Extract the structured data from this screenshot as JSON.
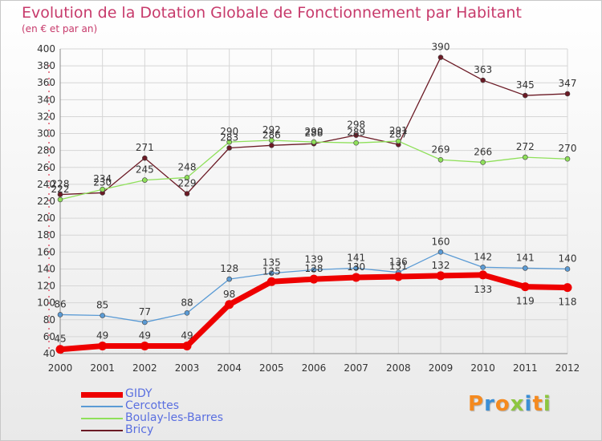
{
  "chart_data": {
    "type": "line",
    "title": "Evolution de la Dotation Globale de Fonctionnement par Habitant",
    "subtitle": "(en € et par an)",
    "xlabel": "",
    "ylabel": "",
    "categories": [
      "2000",
      "2001",
      "2002",
      "2003",
      "2004",
      "2005",
      "2006",
      "2007",
      "2008",
      "2009",
      "2010",
      "2011",
      "2012"
    ],
    "ylim": [
      40,
      400
    ],
    "yticks": [
      40,
      60,
      80,
      100,
      120,
      140,
      160,
      180,
      200,
      220,
      240,
      260,
      280,
      300,
      320,
      340,
      360,
      380,
      400
    ],
    "grid": true,
    "legend_position": "bottom-left",
    "series": [
      {
        "name": "GIDY",
        "color": "#ee0000",
        "values": [
          45,
          49,
          49,
          49,
          98,
          125,
          128,
          130,
          131,
          132,
          133,
          119,
          118
        ]
      },
      {
        "name": "Cercottes",
        "color": "#5b9bd5",
        "values": [
          86,
          85,
          77,
          88,
          128,
          135,
          139,
          141,
          136,
          160,
          142,
          141,
          140
        ]
      },
      {
        "name": "Boulay-les-Barres",
        "color": "#8fe05a",
        "values": [
          222,
          234,
          245,
          248,
          290,
          292,
          290,
          289,
          291,
          269,
          266,
          272,
          270
        ]
      },
      {
        "name": "Bricy",
        "color": "#6b1a25",
        "values": [
          228,
          230,
          271,
          229,
          283,
          286,
          288,
          298,
          287,
          390,
          363,
          345,
          347
        ]
      }
    ]
  },
  "logo": {
    "letters": [
      "P",
      "r",
      "o",
      "x",
      "i",
      "t",
      "i"
    ],
    "colors": [
      "#f58a1f",
      "#3b8fd6",
      "#f58a1f",
      "#8dc63f",
      "#3b8fd6",
      "#f58a1f",
      "#8dc63f"
    ]
  }
}
